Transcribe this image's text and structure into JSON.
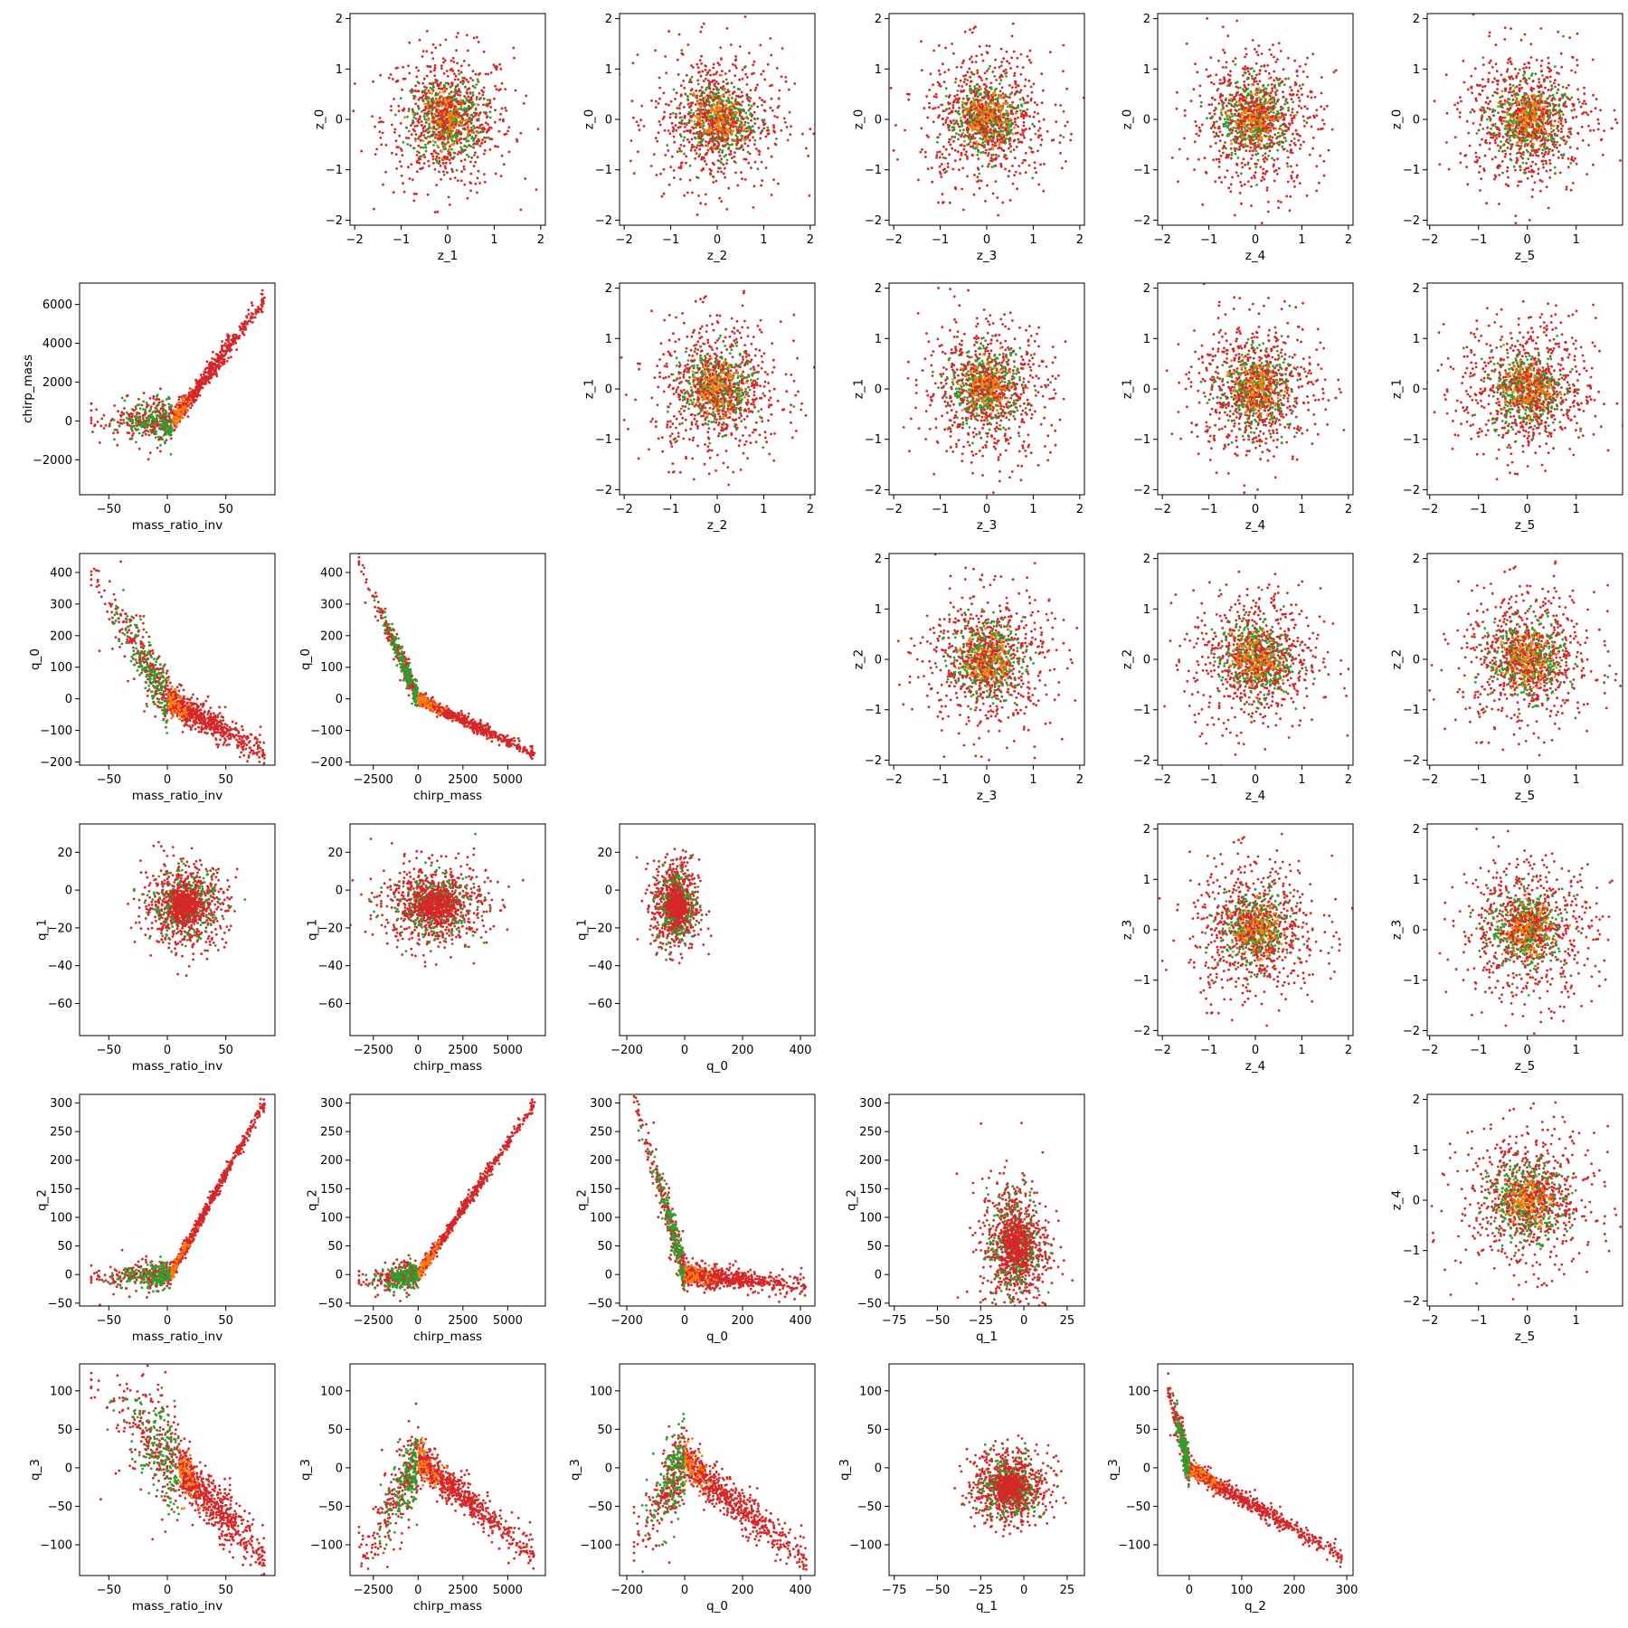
{
  "colors": {
    "red": "#d62728",
    "green": "#2ca02c",
    "orange": "#ff7f0e"
  },
  "chart_data": {
    "type": "scatter",
    "layout": "pair-plot grid (6 rows x 6 columns, diagonal empty)",
    "variables": [
      "mass_ratio_inv",
      "chirp_mass",
      "q_0",
      "q_1",
      "q_2",
      "q_3",
      "z_0",
      "z_1",
      "z_2",
      "z_3",
      "z_4",
      "z_5"
    ],
    "marker_size": "small dots",
    "panels": [
      {
        "row": 0,
        "col": 1,
        "xlabel": "z_1",
        "ylabel": "z_0",
        "xlim": [
          -2.1,
          2.1
        ],
        "ylim": [
          -2.1,
          2.1
        ],
        "xticks": [
          -2,
          -1,
          0,
          1,
          2
        ],
        "yticks": [
          -2,
          -1,
          0,
          1,
          2
        ],
        "pattern": "gauss",
        "sx": 0.7,
        "sy": 0.7
      },
      {
        "row": 0,
        "col": 2,
        "xlabel": "z_2",
        "ylabel": "z_0",
        "xlim": [
          -2.1,
          2.1
        ],
        "ylim": [
          -2.1,
          2.1
        ],
        "xticks": [
          -2,
          -1,
          0,
          1,
          2
        ],
        "yticks": [
          -2,
          -1,
          0,
          1,
          2
        ],
        "pattern": "gauss",
        "sx": 0.7,
        "sy": 0.7
      },
      {
        "row": 0,
        "col": 3,
        "xlabel": "z_3",
        "ylabel": "z_0",
        "xlim": [
          -2.1,
          2.1
        ],
        "ylim": [
          -2.1,
          2.1
        ],
        "xticks": [
          -2,
          -1,
          0,
          1,
          2
        ],
        "yticks": [
          -2,
          -1,
          0,
          1,
          2
        ],
        "pattern": "gauss",
        "sx": 0.7,
        "sy": 0.7
      },
      {
        "row": 0,
        "col": 4,
        "xlabel": "z_4",
        "ylabel": "z_0",
        "xlim": [
          -2.1,
          2.1
        ],
        "ylim": [
          -2.1,
          2.1
        ],
        "xticks": [
          -2,
          -1,
          0,
          1,
          2
        ],
        "yticks": [
          -2,
          -1,
          0,
          1,
          2
        ],
        "pattern": "gauss",
        "sx": 0.7,
        "sy": 0.7
      },
      {
        "row": 0,
        "col": 5,
        "xlabel": "z_5",
        "ylabel": "z_0",
        "xlim": [
          -2.05,
          1.95
        ],
        "ylim": [
          -2.1,
          2.1
        ],
        "xticks": [
          -2,
          -1,
          0,
          1
        ],
        "yticks": [
          -2,
          -1,
          0,
          1,
          2
        ],
        "pattern": "gauss",
        "sx": 0.7,
        "sy": 0.7
      },
      {
        "row": 1,
        "col": 0,
        "xlabel": "mass_ratio_inv",
        "ylabel": "chirp_mass",
        "xlim": [
          -75,
          92
        ],
        "ylim": [
          -3800,
          7100
        ],
        "xticks": [
          -50,
          0,
          50
        ],
        "yticks": [
          -2000,
          0,
          2000,
          4000,
          6000
        ],
        "pattern": "kink",
        "x0": -65,
        "x1": 83,
        "kx": 5,
        "ky": 0,
        "s1": 0,
        "s2": 80,
        "sy": 280
      },
      {
        "row": 1,
        "col": 2,
        "xlabel": "z_2",
        "ylabel": "z_1",
        "xlim": [
          -2.1,
          2.1
        ],
        "ylim": [
          -2.1,
          2.1
        ],
        "xticks": [
          -2,
          -1,
          0,
          1,
          2
        ],
        "yticks": [
          -2,
          -1,
          0,
          1,
          2
        ],
        "pattern": "gauss",
        "sx": 0.7,
        "sy": 0.7
      },
      {
        "row": 1,
        "col": 3,
        "xlabel": "z_3",
        "ylabel": "z_1",
        "xlim": [
          -2.1,
          2.1
        ],
        "ylim": [
          -2.1,
          2.1
        ],
        "xticks": [
          -2,
          -1,
          0,
          1,
          2
        ],
        "yticks": [
          -2,
          -1,
          0,
          1,
          2
        ],
        "pattern": "gauss",
        "sx": 0.7,
        "sy": 0.7
      },
      {
        "row": 1,
        "col": 4,
        "xlabel": "z_4",
        "ylabel": "z_1",
        "xlim": [
          -2.1,
          2.1
        ],
        "ylim": [
          -2.1,
          2.1
        ],
        "xticks": [
          -2,
          -1,
          0,
          1,
          2
        ],
        "yticks": [
          -2,
          -1,
          0,
          1,
          2
        ],
        "pattern": "gauss",
        "sx": 0.7,
        "sy": 0.7
      },
      {
        "row": 1,
        "col": 5,
        "xlabel": "z_5",
        "ylabel": "z_1",
        "xlim": [
          -2.05,
          1.95
        ],
        "ylim": [
          -2.1,
          2.1
        ],
        "xticks": [
          -2,
          -1,
          0,
          1
        ],
        "yticks": [
          -2,
          -1,
          0,
          1,
          2
        ],
        "pattern": "gauss",
        "sx": 0.7,
        "sy": 0.7
      },
      {
        "row": 2,
        "col": 0,
        "xlabel": "mass_ratio_inv",
        "ylabel": "q_0",
        "xlim": [
          -75,
          92
        ],
        "ylim": [
          -210,
          460
        ],
        "xticks": [
          -50,
          0,
          50
        ],
        "yticks": [
          -200,
          -100,
          0,
          100,
          200,
          300,
          400
        ],
        "pattern": "kink",
        "x0": -65,
        "x1": 83,
        "kx": 0,
        "ky": 0,
        "s1": -6,
        "s2": -2.1,
        "sy": 25
      },
      {
        "row": 2,
        "col": 1,
        "xlabel": "chirp_mass",
        "ylabel": "q_0",
        "xlim": [
          -3800,
          7100
        ],
        "ylim": [
          -210,
          460
        ],
        "xticks": [
          -2500,
          0,
          2500,
          5000
        ],
        "yticks": [
          -200,
          -100,
          0,
          100,
          200,
          300,
          400
        ],
        "pattern": "kink",
        "x0": -3300,
        "x1": 6500,
        "kx": 0,
        "ky": 0,
        "s1": -0.13,
        "s2": -0.027,
        "sy": 10
      },
      {
        "row": 2,
        "col": 3,
        "xlabel": "z_3",
        "ylabel": "z_2",
        "xlim": [
          -2.1,
          2.1
        ],
        "ylim": [
          -2.1,
          2.1
        ],
        "xticks": [
          -2,
          -1,
          0,
          1,
          2
        ],
        "yticks": [
          -2,
          -1,
          0,
          1,
          2
        ],
        "pattern": "gauss",
        "sx": 0.7,
        "sy": 0.7
      },
      {
        "row": 2,
        "col": 4,
        "xlabel": "z_4",
        "ylabel": "z_2",
        "xlim": [
          -2.1,
          2.1
        ],
        "ylim": [
          -2.1,
          2.1
        ],
        "xticks": [
          -2,
          -1,
          0,
          1,
          2
        ],
        "yticks": [
          -2,
          -1,
          0,
          1,
          2
        ],
        "pattern": "gauss",
        "sx": 0.7,
        "sy": 0.7
      },
      {
        "row": 2,
        "col": 5,
        "xlabel": "z_5",
        "ylabel": "z_2",
        "xlim": [
          -2.05,
          1.95
        ],
        "ylim": [
          -2.1,
          2.1
        ],
        "xticks": [
          -2,
          -1,
          0,
          1
        ],
        "yticks": [
          -2,
          -1,
          0,
          1,
          2
        ],
        "pattern": "gauss",
        "sx": 0.7,
        "sy": 0.7
      },
      {
        "row": 3,
        "col": 0,
        "xlabel": "mass_ratio_inv",
        "ylabel": "q_1",
        "xlim": [
          -75,
          92
        ],
        "ylim": [
          -77,
          35
        ],
        "xticks": [
          -50,
          0,
          50
        ],
        "yticks": [
          -60,
          -40,
          -20,
          0,
          20
        ],
        "pattern": "blob",
        "cx": 15,
        "cy": -8,
        "sx": 18,
        "sy": 11
      },
      {
        "row": 3,
        "col": 1,
        "xlabel": "chirp_mass",
        "ylabel": "q_1",
        "xlim": [
          -3800,
          7100
        ],
        "ylim": [
          -77,
          35
        ],
        "xticks": [
          -2500,
          0,
          2500,
          5000
        ],
        "yticks": [
          -60,
          -40,
          -20,
          0,
          20
        ],
        "pattern": "blob",
        "cx": 900,
        "cy": -8,
        "sx": 1500,
        "sy": 11
      },
      {
        "row": 3,
        "col": 2,
        "xlabel": "q_0",
        "ylabel": "q_1",
        "xlim": [
          -225,
          450
        ],
        "ylim": [
          -77,
          35
        ],
        "xticks": [
          -200,
          0,
          200,
          400
        ],
        "yticks": [
          -60,
          -40,
          -20,
          0,
          20
        ],
        "pattern": "blob",
        "cx": -30,
        "cy": -8,
        "sx": 40,
        "sy": 12
      },
      {
        "row": 3,
        "col": 4,
        "xlabel": "z_4",
        "ylabel": "z_3",
        "xlim": [
          -2.1,
          2.1
        ],
        "ylim": [
          -2.1,
          2.1
        ],
        "xticks": [
          -2,
          -1,
          0,
          1,
          2
        ],
        "yticks": [
          -2,
          -1,
          0,
          1,
          2
        ],
        "pattern": "gauss",
        "sx": 0.7,
        "sy": 0.7
      },
      {
        "row": 3,
        "col": 5,
        "xlabel": "z_5",
        "ylabel": "z_3",
        "xlim": [
          -2.05,
          1.95
        ],
        "ylim": [
          -2.1,
          2.1
        ],
        "xticks": [
          -2,
          -1,
          0,
          1
        ],
        "yticks": [
          -2,
          -1,
          0,
          1,
          2
        ],
        "pattern": "gauss",
        "sx": 0.7,
        "sy": 0.7
      },
      {
        "row": 4,
        "col": 0,
        "xlabel": "mass_ratio_inv",
        "ylabel": "q_2",
        "xlim": [
          -75,
          92
        ],
        "ylim": [
          -55,
          315
        ],
        "xticks": [
          -50,
          0,
          50
        ],
        "yticks": [
          -50,
          0,
          50,
          100,
          150,
          200,
          250,
          300
        ],
        "pattern": "kink",
        "x0": -65,
        "x1": 83,
        "kx": 3,
        "ky": 0,
        "s1": 0.1,
        "s2": 3.75,
        "sy": 6
      },
      {
        "row": 4,
        "col": 1,
        "xlabel": "chirp_mass",
        "ylabel": "q_2",
        "xlim": [
          -3800,
          7100
        ],
        "ylim": [
          -55,
          315
        ],
        "xticks": [
          -2500,
          0,
          2500,
          5000
        ],
        "yticks": [
          -50,
          0,
          50,
          100,
          150,
          200,
          250,
          300
        ],
        "pattern": "kink",
        "x0": -3300,
        "x1": 6500,
        "kx": 0,
        "ky": 0,
        "s1": 0.004,
        "s2": 0.046,
        "sy": 6
      },
      {
        "row": 4,
        "col": 2,
        "xlabel": "q_0",
        "ylabel": "q_2",
        "xlim": [
          -225,
          450
        ],
        "ylim": [
          -55,
          315
        ],
        "xticks": [
          -200,
          0,
          200,
          400
        ],
        "yticks": [
          -50,
          0,
          50,
          100,
          150,
          200,
          250,
          300
        ],
        "pattern": "kink",
        "x0": -175,
        "x1": 420,
        "kx": 0,
        "ky": 0,
        "s1": -1.75,
        "s2": -0.05,
        "sy": 10
      },
      {
        "row": 4,
        "col": 3,
        "xlabel": "q_1",
        "ylabel": "q_2",
        "xlim": [
          -78,
          35
        ],
        "ylim": [
          -55,
          315
        ],
        "xticks": [
          -75,
          -50,
          -25,
          0,
          25
        ],
        "yticks": [
          -50,
          0,
          50,
          100,
          150,
          200,
          250,
          300
        ],
        "pattern": "blob",
        "cx": -5,
        "cy": 50,
        "sx": 10,
        "sy": 60
      },
      {
        "row": 4,
        "col": 5,
        "xlabel": "z_5",
        "ylabel": "z_4",
        "xlim": [
          -2.05,
          1.95
        ],
        "ylim": [
          -2.1,
          2.1
        ],
        "xticks": [
          -2,
          -1,
          0,
          1
        ],
        "yticks": [
          -2,
          -1,
          0,
          1,
          2
        ],
        "pattern": "gauss",
        "sx": 0.7,
        "sy": 0.7
      },
      {
        "row": 5,
        "col": 0,
        "xlabel": "mass_ratio_inv",
        "ylabel": "q_3",
        "xlim": [
          -75,
          92
        ],
        "ylim": [
          -140,
          135
        ],
        "xticks": [
          -50,
          0,
          50
        ],
        "yticks": [
          -100,
          -50,
          0,
          50,
          100
        ],
        "pattern": "kink",
        "x0": -65,
        "x1": 83,
        "kx": 10,
        "ky": 0,
        "s1": -1.5,
        "s2": -1.6,
        "sy": 18
      },
      {
        "row": 5,
        "col": 1,
        "xlabel": "chirp_mass",
        "ylabel": "q_3",
        "xlim": [
          -3800,
          7100
        ],
        "ylim": [
          -140,
          135
        ],
        "xticks": [
          -2500,
          0,
          2500,
          5000
        ],
        "yticks": [
          -100,
          -50,
          0,
          50,
          100
        ],
        "pattern": "kink",
        "x0": -3300,
        "x1": 6500,
        "kx": 0,
        "ky": 10,
        "s1": 0.04,
        "s2": -0.019,
        "sy": 12
      },
      {
        "row": 5,
        "col": 2,
        "xlabel": "q_0",
        "ylabel": "q_3",
        "xlim": [
          -225,
          450
        ],
        "ylim": [
          -140,
          135
        ],
        "xticks": [
          -200,
          0,
          200,
          400
        ],
        "yticks": [
          -100,
          -50,
          0,
          50,
          100
        ],
        "pattern": "kink",
        "x0": -175,
        "x1": 420,
        "kx": 0,
        "ky": 10,
        "s1": 0.65,
        "s2": -0.32,
        "sy": 14
      },
      {
        "row": 5,
        "col": 3,
        "xlabel": "q_1",
        "ylabel": "q_3",
        "xlim": [
          -78,
          35
        ],
        "ylim": [
          -140,
          135
        ],
        "xticks": [
          -75,
          -50,
          -25,
          0,
          25
        ],
        "yticks": [
          -100,
          -50,
          0,
          50,
          100
        ],
        "pattern": "blob",
        "cx": -8,
        "cy": -25,
        "sx": 11,
        "sy": 25
      },
      {
        "row": 5,
        "col": 4,
        "xlabel": "q_2",
        "ylabel": "q_3",
        "xlim": [
          -60,
          312
        ],
        "ylim": [
          -140,
          135
        ],
        "xticks": [
          0,
          100,
          200,
          300
        ],
        "yticks": [
          -100,
          -50,
          0,
          50,
          100
        ],
        "pattern": "kink",
        "x0": -40,
        "x1": 290,
        "kx": 0,
        "ky": 0,
        "s1": -2.5,
        "s2": -0.4,
        "sy": 6
      }
    ]
  }
}
